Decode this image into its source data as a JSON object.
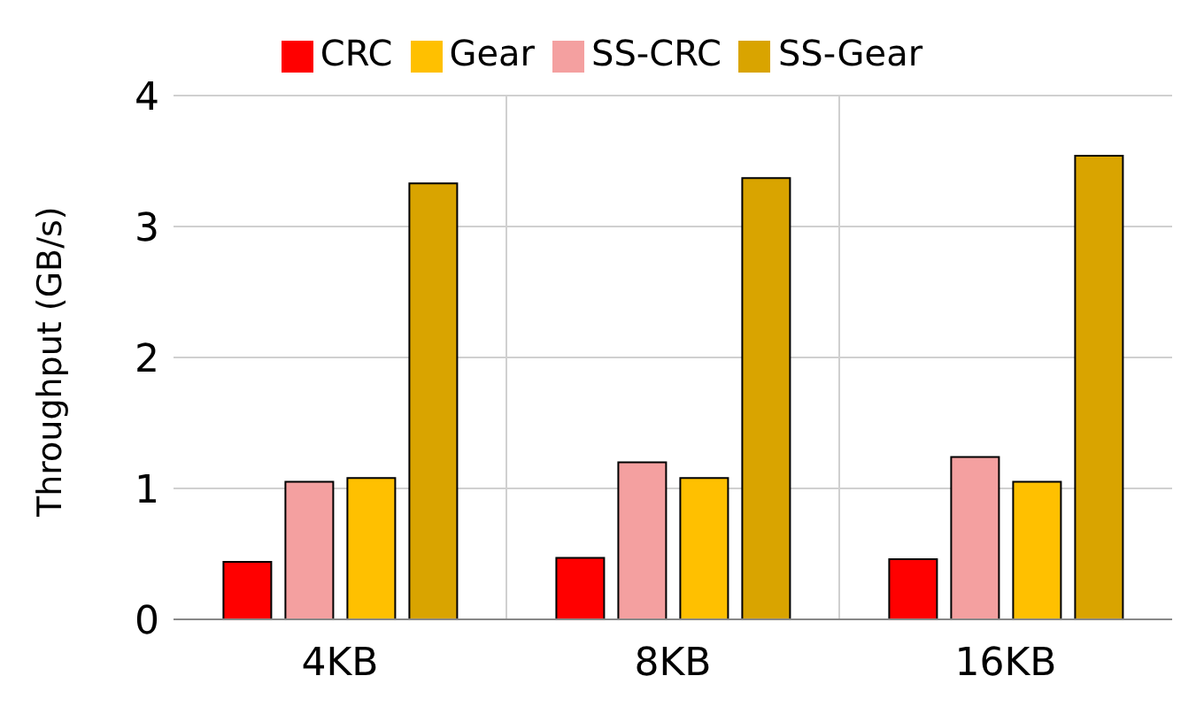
{
  "chart_data": {
    "type": "bar",
    "ylabel": "Throughput (GB/s)",
    "categories": [
      "4KB",
      "8KB",
      "16KB"
    ],
    "series": [
      {
        "name": "CRC",
        "color": "#ff0000",
        "values": [
          0.44,
          0.47,
          0.46
        ]
      },
      {
        "name": "SS-CRC",
        "color": "#f4a0a0",
        "values": [
          1.05,
          1.2,
          1.24
        ]
      },
      {
        "name": "Gear",
        "color": "#ffc000",
        "values": [
          1.08,
          1.08,
          1.05
        ]
      },
      {
        "name": "SS-Gear",
        "color": "#d9a400",
        "values": [
          3.33,
          3.37,
          3.54
        ]
      }
    ],
    "ylim": [
      0,
      4
    ],
    "yticks": [
      0,
      1,
      2,
      3,
      4
    ],
    "grid": true,
    "legend": "top"
  }
}
